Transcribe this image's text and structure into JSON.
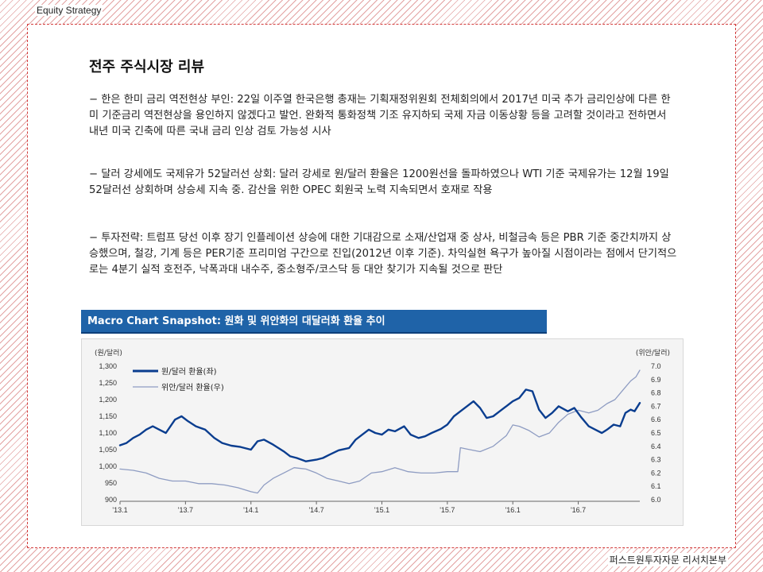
{
  "header": {
    "category": "Equity  Strategy"
  },
  "footer": {
    "source": "퍼스트원투자자문 리서치본부"
  },
  "article": {
    "title": "전주 주식시장 리뷰",
    "paragraphs": [
      "− 한은 한미 금리 역전현상 부인: 22일 이주열 한국은행 총재는 기획재정위원회 전체회의에서 2017년 미국 추가 금리인상에 다른 한미 기준금리 역전현상을 용인하지 않겠다고 발언. 완화적 통화정책 기조 유지하되 국제 자금 이동상황 등을 고려할 것이라고 전하면서 내년 미국 긴축에 따른 국내 금리 인상 검토 가능성 시사",
      "− 달러 강세에도 국제유가 52달러선 상회: 달러 강세로 원/달러 환율은 1200원선을 돌파하였으나 WTI 기준 국제유가는 12월 19일 52달러선 상회하며 상승세 지속 중. 감산을 위한 OPEC 회원국 노력 지속되면서 호재로 작용",
      "− 투자전략: 트럼프 당선 이후 장기 인플레이션 상승에 대한 기대감으로 소재/산업재 중 상사, 비철금속 등은 PBR 기준 중간치까지 상승했으며, 철강, 기계 등은 PER기준 프리미엄 구간으로 진입(2012년 이후 기준). 차익실현 욕구가 높아질 시점이라는 점에서 단기적으로는 4분기 실적 호전주, 낙폭과대 내수주, 중소형주/코스닥 등 대안 찾기가 지속될 것으로 판단"
    ]
  },
  "chart_header": {
    "title": "Macro Chart Snapshot:  원화 및 위안화의 대달러화 환율 추이"
  },
  "chart_data": {
    "type": "line",
    "left_axis_label": "(원/달러)",
    "right_axis_label": "(위안/달러)",
    "x_ticks": [
      "'13.1",
      "'13.7",
      "'14.1",
      "'14.7",
      "'15.1",
      "'15.7",
      "'16.1",
      "'16.7"
    ],
    "x_range": [
      2013.0,
      2016.97
    ],
    "y_left_ticks": [
      "1,300",
      "1,250",
      "1,200",
      "1,150",
      "1,100",
      "1,050",
      "1,000",
      "950",
      "900"
    ],
    "y_left_range": [
      900,
      1300
    ],
    "y_right_ticks": [
      "7.0",
      "6.9",
      "6.8",
      "6.7",
      "6.6",
      "6.5",
      "6.4",
      "6.3",
      "6.2",
      "6.1",
      "6.0"
    ],
    "y_right_range": [
      6.0,
      7.0
    ],
    "grid": false,
    "legend_position": "top-left",
    "series": [
      {
        "name": "원/달러 환율(좌)",
        "axis": "left",
        "color": "#0a3d8f",
        "points": [
          [
            2013.0,
            1063
          ],
          [
            2013.05,
            1070
          ],
          [
            2013.1,
            1085
          ],
          [
            2013.15,
            1095
          ],
          [
            2013.2,
            1110
          ],
          [
            2013.25,
            1120
          ],
          [
            2013.3,
            1110
          ],
          [
            2013.35,
            1100
          ],
          [
            2013.42,
            1140
          ],
          [
            2013.47,
            1150
          ],
          [
            2013.52,
            1135
          ],
          [
            2013.58,
            1120
          ],
          [
            2013.65,
            1110
          ],
          [
            2013.72,
            1085
          ],
          [
            2013.78,
            1070
          ],
          [
            2013.85,
            1062
          ],
          [
            2013.92,
            1058
          ],
          [
            2014.0,
            1050
          ],
          [
            2014.05,
            1075
          ],
          [
            2014.1,
            1080
          ],
          [
            2014.17,
            1065
          ],
          [
            2014.25,
            1045
          ],
          [
            2014.3,
            1030
          ],
          [
            2014.35,
            1025
          ],
          [
            2014.42,
            1015
          ],
          [
            2014.5,
            1020
          ],
          [
            2014.55,
            1025
          ],
          [
            2014.6,
            1035
          ],
          [
            2014.67,
            1048
          ],
          [
            2014.75,
            1055
          ],
          [
            2014.8,
            1080
          ],
          [
            2014.85,
            1095
          ],
          [
            2014.9,
            1110
          ],
          [
            2014.95,
            1100
          ],
          [
            2015.0,
            1095
          ],
          [
            2015.05,
            1110
          ],
          [
            2015.1,
            1105
          ],
          [
            2015.17,
            1120
          ],
          [
            2015.22,
            1095
          ],
          [
            2015.28,
            1085
          ],
          [
            2015.33,
            1090
          ],
          [
            2015.38,
            1100
          ],
          [
            2015.45,
            1112
          ],
          [
            2015.5,
            1125
          ],
          [
            2015.55,
            1150
          ],
          [
            2015.6,
            1165
          ],
          [
            2015.65,
            1180
          ],
          [
            2015.7,
            1195
          ],
          [
            2015.75,
            1175
          ],
          [
            2015.8,
            1145
          ],
          [
            2015.85,
            1150
          ],
          [
            2015.9,
            1165
          ],
          [
            2015.95,
            1180
          ],
          [
            2016.0,
            1195
          ],
          [
            2016.05,
            1205
          ],
          [
            2016.1,
            1230
          ],
          [
            2016.15,
            1225
          ],
          [
            2016.2,
            1170
          ],
          [
            2016.25,
            1145
          ],
          [
            2016.3,
            1160
          ],
          [
            2016.35,
            1180
          ],
          [
            2016.42,
            1165
          ],
          [
            2016.47,
            1175
          ],
          [
            2016.52,
            1148
          ],
          [
            2016.58,
            1120
          ],
          [
            2016.63,
            1110
          ],
          [
            2016.68,
            1100
          ],
          [
            2016.72,
            1110
          ],
          [
            2016.77,
            1125
          ],
          [
            2016.82,
            1120
          ],
          [
            2016.86,
            1160
          ],
          [
            2016.9,
            1170
          ],
          [
            2016.93,
            1165
          ],
          [
            2016.97,
            1190
          ]
        ]
      },
      {
        "name": "위안/달러 환율(우)",
        "axis": "right",
        "color": "#8e9cc2",
        "points": [
          [
            2013.0,
            6.23
          ],
          [
            2013.1,
            6.22
          ],
          [
            2013.2,
            6.2
          ],
          [
            2013.3,
            6.16
          ],
          [
            2013.4,
            6.14
          ],
          [
            2013.5,
            6.14
          ],
          [
            2013.6,
            6.12
          ],
          [
            2013.7,
            6.12
          ],
          [
            2013.8,
            6.11
          ],
          [
            2013.9,
            6.09
          ],
          [
            2014.0,
            6.06
          ],
          [
            2014.05,
            6.05
          ],
          [
            2014.1,
            6.11
          ],
          [
            2014.17,
            6.16
          ],
          [
            2014.25,
            6.2
          ],
          [
            2014.33,
            6.24
          ],
          [
            2014.42,
            6.23
          ],
          [
            2014.5,
            6.2
          ],
          [
            2014.58,
            6.16
          ],
          [
            2014.67,
            6.14
          ],
          [
            2014.75,
            6.12
          ],
          [
            2014.83,
            6.14
          ],
          [
            2014.92,
            6.2
          ],
          [
            2015.0,
            6.21
          ],
          [
            2015.1,
            6.24
          ],
          [
            2015.2,
            6.21
          ],
          [
            2015.3,
            6.2
          ],
          [
            2015.4,
            6.2
          ],
          [
            2015.5,
            6.21
          ],
          [
            2015.58,
            6.21
          ],
          [
            2015.6,
            6.39
          ],
          [
            2015.65,
            6.38
          ],
          [
            2015.75,
            6.36
          ],
          [
            2015.85,
            6.4
          ],
          [
            2015.95,
            6.48
          ],
          [
            2016.0,
            6.56
          ],
          [
            2016.05,
            6.55
          ],
          [
            2016.12,
            6.52
          ],
          [
            2016.2,
            6.47
          ],
          [
            2016.28,
            6.5
          ],
          [
            2016.35,
            6.58
          ],
          [
            2016.42,
            6.64
          ],
          [
            2016.5,
            6.67
          ],
          [
            2016.58,
            6.65
          ],
          [
            2016.65,
            6.67
          ],
          [
            2016.72,
            6.72
          ],
          [
            2016.78,
            6.75
          ],
          [
            2016.84,
            6.82
          ],
          [
            2016.9,
            6.89
          ],
          [
            2016.94,
            6.92
          ],
          [
            2016.97,
            6.97
          ]
        ]
      }
    ]
  }
}
